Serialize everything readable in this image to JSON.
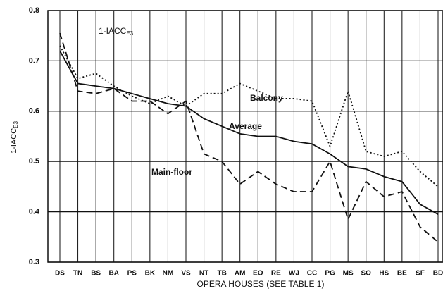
{
  "chart_data": {
    "type": "line",
    "ylabel": {
      "main": "1-IACC",
      "sub": "E3"
    },
    "xlabel": "OPERA HOUSES (SEE TABLE 1)",
    "annotations": [
      {
        "main": "1-IACC",
        "sub": "E3"
      },
      {
        "text": "Balcony"
      },
      {
        "text": "Average"
      },
      {
        "text": "Main-floor"
      }
    ],
    "categories": [
      "DS",
      "TN",
      "BS",
      "BA",
      "PS",
      "BK",
      "NM",
      "VS",
      "NT",
      "TB",
      "AM",
      "EO",
      "RE",
      "WJ",
      "CC",
      "PG",
      "MS",
      "SO",
      "HS",
      "BE",
      "SF",
      "BD"
    ],
    "series": [
      {
        "name": "Balcony",
        "color": "#111111",
        "style": "dotted",
        "values": [
          0.73,
          0.665,
          0.675,
          0.65,
          0.63,
          0.615,
          0.63,
          0.61,
          0.635,
          0.635,
          0.655,
          0.64,
          0.625,
          0.625,
          0.62,
          0.53,
          0.64,
          0.52,
          0.51,
          0.52,
          0.48,
          0.45
        ]
      },
      {
        "name": "Average",
        "color": "#111111",
        "style": "solid",
        "values": [
          0.72,
          0.655,
          0.65,
          0.645,
          0.635,
          0.625,
          0.615,
          0.61,
          0.585,
          0.57,
          0.555,
          0.55,
          0.55,
          0.54,
          0.535,
          0.515,
          0.49,
          0.485,
          0.47,
          0.46,
          0.415,
          0.395
        ]
      },
      {
        "name": "Main-floor",
        "color": "#111111",
        "style": "dashed",
        "values": [
          0.755,
          0.64,
          0.635,
          0.645,
          0.62,
          0.62,
          0.595,
          0.62,
          0.515,
          0.5,
          0.455,
          0.48,
          0.455,
          0.44,
          0.44,
          0.5,
          0.385,
          0.46,
          0.43,
          0.44,
          0.37,
          0.34
        ]
      }
    ],
    "ylim": [
      0.3,
      0.8
    ],
    "yticks": [
      0.3,
      0.4,
      0.5,
      0.6,
      0.7,
      0.8
    ],
    "grid": true
  }
}
